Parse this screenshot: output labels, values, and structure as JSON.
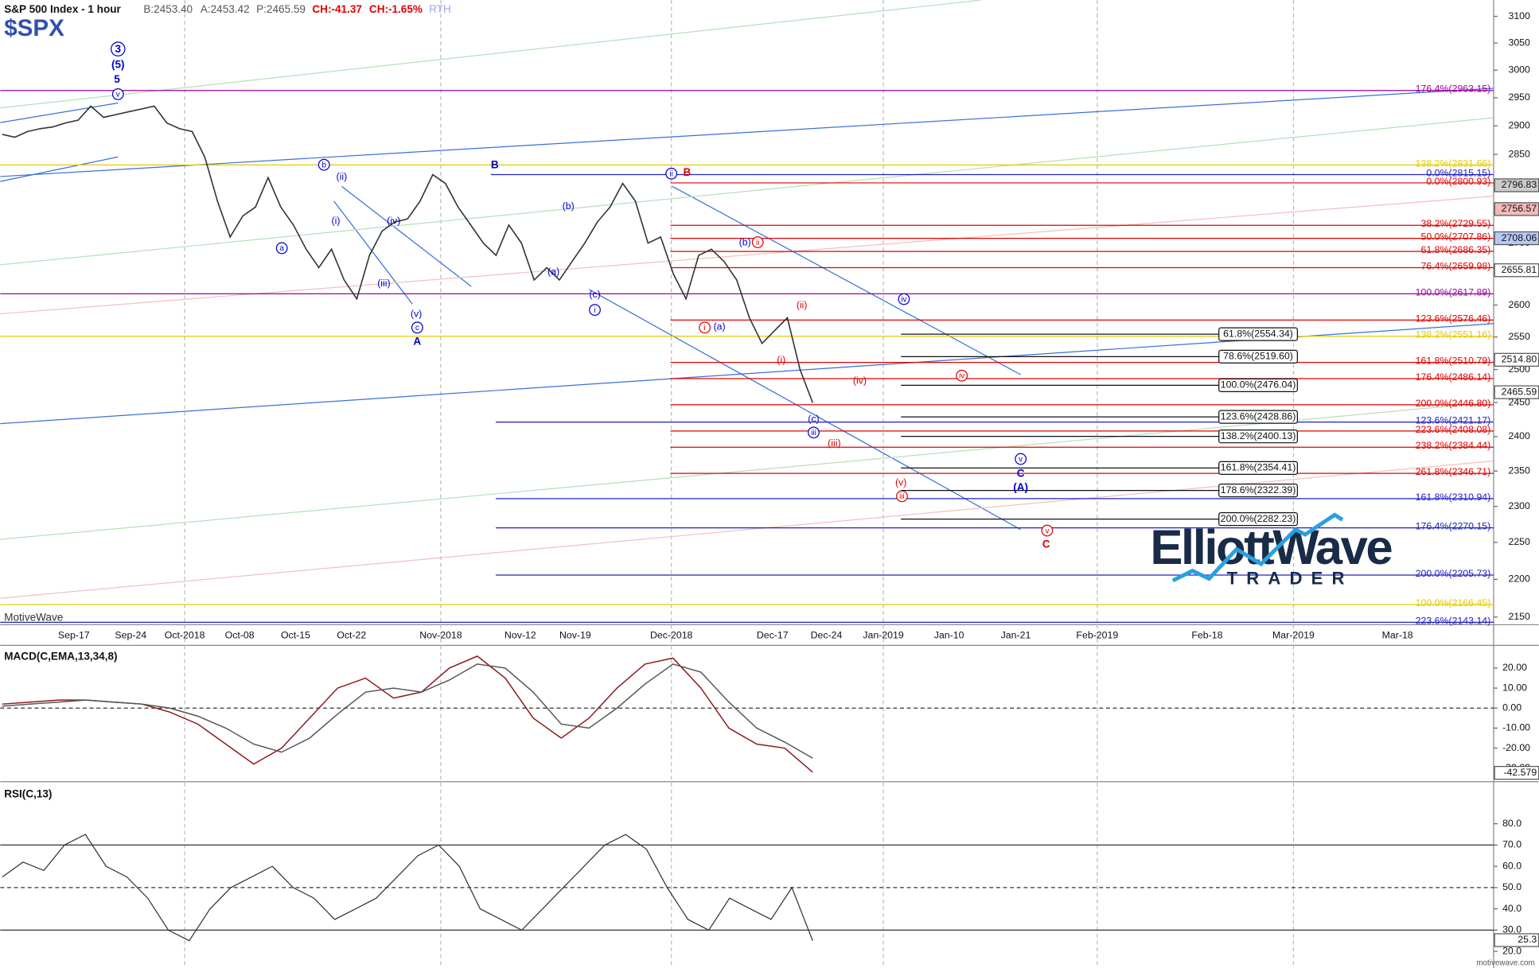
{
  "header": {
    "title": "S&P 500 Index - 1 hour",
    "bid": "B:2453.40",
    "ask": "A:2453.42",
    "price": "P:2465.59",
    "change": "CH:-41.37",
    "change_pct": "CH:-1.65%",
    "session": "RTH",
    "symbol": "$SPX",
    "watermark": "MotiveWave"
  },
  "logo": {
    "name": "ElliottWave",
    "tagline": "TRADER"
  },
  "footer": "motivewave.com",
  "chart_data": [
    {
      "type": "line",
      "log_scale": true,
      "color": "#333333",
      "ylim": [
        2140,
        3131
      ],
      "yticks": [
        2150,
        2200,
        2250,
        2300,
        2350,
        2400,
        2450,
        2500,
        2550,
        2600,
        2650,
        2700,
        2750,
        2800,
        2850,
        2900,
        2950,
        3000,
        3050,
        3100
      ],
      "x_axis_labels": [
        "Sep-17",
        "Sep-24",
        "Oct-2018",
        "Oct-08",
        "Oct-15",
        "Oct-22",
        "Nov-2018",
        "Nov-12",
        "Nov-19",
        "Dec-2018",
        "Dec-17",
        "Dec-24",
        "Jan-2019",
        "Jan-10",
        "Jan-21",
        "Feb-2019",
        "Feb-18",
        "Mar-2019",
        "Mar-18"
      ],
      "values": [
        2885,
        2880,
        2890,
        2895,
        2898,
        2905,
        2910,
        2935,
        2915,
        2920,
        2925,
        2930,
        2935,
        2905,
        2895,
        2890,
        2845,
        2770,
        2710,
        2745,
        2760,
        2810,
        2760,
        2730,
        2690,
        2660,
        2690,
        2640,
        2610,
        2680,
        2720,
        2735,
        2740,
        2770,
        2815,
        2800,
        2760,
        2730,
        2700,
        2680,
        2730,
        2700,
        2640,
        2660,
        2640,
        2670,
        2700,
        2735,
        2760,
        2800,
        2770,
        2700,
        2710,
        2650,
        2610,
        2680,
        2690,
        2670,
        2640,
        2580,
        2540,
        2560,
        2580,
        2500,
        2450
      ],
      "levels": [
        {
          "label": "176.4%(2963.15)",
          "value": 2963.15,
          "color": "#a000a0"
        },
        {
          "label": "138.2%(2831.66)",
          "value": 2831.66,
          "color": "#e8c800"
        },
        {
          "label": "0.0%(2815.15)",
          "value": 2815.15,
          "color": "#2020c0"
        },
        {
          "label": "0.0%(2800.93)",
          "value": 2800.93,
          "color": "#e00000"
        },
        {
          "label": "38.2%(2729.55)",
          "value": 2729.55,
          "color": "#e00000"
        },
        {
          "label": "50.0%(2707.86)",
          "value": 2707.86,
          "color": "#e00000"
        },
        {
          "label": "61.8%(2686.35)",
          "value": 2686.35,
          "color": "#e00000"
        },
        {
          "label": "76.4%(2659.98)",
          "value": 2659.98,
          "color": "#e00000"
        },
        {
          "label": "100.0%(2617.89)",
          "value": 2617.89,
          "color": "#a000a0"
        },
        {
          "label": "123.6%(2576.46)",
          "value": 2576.46,
          "color": "#e00000"
        },
        {
          "label": "138.2%(2551.16)",
          "value": 2551.16,
          "color": "#e8c800"
        },
        {
          "label": "161.8%(2510.79)",
          "value": 2510.79,
          "color": "#e00000"
        },
        {
          "label": "176.4%(2486.14)",
          "value": 2486.14,
          "color": "#e00000"
        },
        {
          "label": "200.0%(2446.80)",
          "value": 2446.8,
          "color": "#e00000"
        },
        {
          "label": "123.6%(2421.17)",
          "value": 2421.17,
          "color": "#2020c0"
        },
        {
          "label": "223.6%(2408.08)",
          "value": 2408.08,
          "color": "#e00000"
        },
        {
          "label": "238.2%(2384.44)",
          "value": 2384.44,
          "color": "#e00000"
        },
        {
          "label": "261.8%(2346.71)",
          "value": 2346.71,
          "color": "#e00000"
        },
        {
          "label": "161.8%(2310.94)",
          "value": 2310.94,
          "color": "#2020c0"
        },
        {
          "label": "176.4%(2270.15)",
          "value": 2270.15,
          "color": "#2020c0"
        },
        {
          "label": "200.0%(2205.73)",
          "value": 2205.73,
          "color": "#2020c0"
        },
        {
          "label": "100.0%(2166.45)",
          "value": 2166.45,
          "color": "#e8c800"
        },
        {
          "label": "223.6%(2143.14)",
          "value": 2143.14,
          "color": "#2020c0"
        }
      ],
      "projections": [
        {
          "label": "61.8%(2554.34)",
          "value": 2554.34
        },
        {
          "label": "78.6%(2519.60)",
          "value": 2519.6
        },
        {
          "label": "100.0%(2476.04)",
          "value": 2476.04
        },
        {
          "label": "123.6%(2428.86)",
          "value": 2428.86
        },
        {
          "label": "138.2%(2400.13)",
          "value": 2400.13
        },
        {
          "label": "161.8%(2354.41)",
          "value": 2354.41
        },
        {
          "label": "178.6%(2322.39)",
          "value": 2322.39
        },
        {
          "label": "200.0%(2282.23)",
          "value": 2282.23
        }
      ],
      "price_labels": [
        {
          "value": 2796.83,
          "label": "2796.83",
          "color": "#cccccc"
        },
        {
          "value": 2756.57,
          "label": "2756.57",
          "color": "#f4b8b8"
        },
        {
          "value": 2708.06,
          "label": "2708.06",
          "color": "#b8c8f4"
        },
        {
          "value": 2655.81,
          "label": "2655.81",
          "color": "#ffffff"
        },
        {
          "value": 2514.8,
          "label": "2514.80",
          "color": "#ffffff"
        },
        {
          "value": 2465.59,
          "label": "2465.59",
          "color": "#ffffff"
        }
      ],
      "wave_labels": [
        {
          "text": "3",
          "color": "#0000cc",
          "circled": true,
          "bold": true
        },
        {
          "text": "(5)",
          "color": "#0000cc",
          "circled": false,
          "bold": true
        },
        {
          "text": "5",
          "color": "#0000cc",
          "circled": false,
          "bold": true
        },
        {
          "text": "v",
          "color": "#0000cc",
          "circled": true,
          "bold": false
        },
        {
          "text": "b",
          "color": "#0000cc",
          "circled": true,
          "bold": false
        },
        {
          "text": "(ii)",
          "color": "#0000cc",
          "circled": false,
          "bold": false
        },
        {
          "text": "a",
          "color": "#0000cc",
          "circled": true,
          "bold": false
        },
        {
          "text": "(i)",
          "color": "#0000cc",
          "circled": false,
          "bold": false
        },
        {
          "text": "(iv)",
          "color": "#0000cc",
          "circled": false,
          "bold": false
        },
        {
          "text": "(iii)",
          "color": "#0000cc",
          "circled": false,
          "bold": false
        },
        {
          "text": "(v)",
          "color": "#0000cc",
          "circled": false,
          "bold": false
        },
        {
          "text": "c",
          "color": "#0000cc",
          "circled": true,
          "bold": false
        },
        {
          "text": "A",
          "color": "#0000cc",
          "circled": false,
          "bold": true
        },
        {
          "text": "B",
          "color": "#0000cc",
          "circled": false,
          "bold": true
        },
        {
          "text": "(b)",
          "color": "#0000cc",
          "circled": false,
          "bold": false
        },
        {
          "text": "(a)",
          "color": "#0000cc",
          "circled": false,
          "bold": false
        },
        {
          "text": "(c)",
          "color": "#0000cc",
          "circled": false,
          "bold": false
        },
        {
          "text": "i",
          "color": "#0000cc",
          "circled": true,
          "bold": false
        },
        {
          "text": "ii",
          "color": "#0000cc",
          "circled": true,
          "bold": false
        },
        {
          "text": "B",
          "color": "#e00000",
          "circled": false,
          "bold": true
        },
        {
          "text": "(b)",
          "color": "#0000cc",
          "circled": false,
          "bold": false
        },
        {
          "text": "ii",
          "color": "#e00000",
          "circled": true,
          "bold": false
        },
        {
          "text": "i",
          "color": "#e00000",
          "circled": true,
          "bold": false
        },
        {
          "text": "(a)",
          "color": "#0000cc",
          "circled": false,
          "bold": false
        },
        {
          "text": "(ii)",
          "color": "#e00000",
          "circled": false,
          "bold": false
        },
        {
          "text": "(i)",
          "color": "#e00000",
          "circled": false,
          "bold": false
        },
        {
          "text": "(iv)",
          "color": "#e00000",
          "circled": false,
          "bold": false
        },
        {
          "text": "iv",
          "color": "#e00000",
          "circled": true,
          "bold": false
        },
        {
          "text": "(c)",
          "color": "#0000cc",
          "circled": false,
          "bold": false
        },
        {
          "text": "iii",
          "color": "#0000cc",
          "circled": true,
          "bold": false
        },
        {
          "text": "(iii)",
          "color": "#e00000",
          "circled": false,
          "bold": false
        },
        {
          "text": "iv",
          "color": "#0000cc",
          "circled": true,
          "bold": false
        },
        {
          "text": "(v)",
          "color": "#e00000",
          "circled": false,
          "bold": false
        },
        {
          "text": "iii",
          "color": "#e00000",
          "circled": true,
          "bold": false
        },
        {
          "text": "v",
          "color": "#0000cc",
          "circled": true,
          "bold": false
        },
        {
          "text": "C",
          "color": "#0000cc",
          "circled": false,
          "bold": true
        },
        {
          "text": "(A)",
          "color": "#0000cc",
          "circled": false,
          "bold": true
        },
        {
          "text": "v",
          "color": "#e00000",
          "circled": true,
          "bold": false
        },
        {
          "text": "C",
          "color": "#e00000",
          "circled": false,
          "bold": true
        }
      ]
    },
    {
      "type": "line",
      "title": "MACD(C,EMA,13,34,8)",
      "ylim": [
        -35.8,
        30.4
      ],
      "yticks": [
        {
          "value": 20,
          "label": "20.00"
        },
        {
          "value": 10,
          "label": "10.00"
        },
        {
          "value": 0,
          "label": "0.00"
        },
        {
          "value": -10,
          "label": "-10.00"
        },
        {
          "value": -20,
          "label": "-20.00"
        },
        {
          "value": -30,
          "label": "-30.00"
        }
      ],
      "zero_line": 0,
      "series": [
        {
          "color": "#8b1a1a",
          "values": [
            2,
            3,
            4,
            4,
            3,
            2,
            -2,
            -8,
            -18,
            -28,
            -20,
            -5,
            10,
            15,
            5,
            8,
            20,
            26,
            15,
            -5,
            -15,
            -5,
            10,
            22,
            25,
            10,
            -10,
            -18,
            -20,
            -32
          ]
        },
        {
          "color": "#555555",
          "values": [
            1,
            2,
            3,
            4,
            3,
            2,
            0,
            -4,
            -10,
            -18,
            -22,
            -15,
            -3,
            8,
            10,
            8,
            14,
            22,
            20,
            8,
            -8,
            -10,
            0,
            12,
            22,
            18,
            3,
            -10,
            -17,
            -25
          ]
        }
      ],
      "last_value": -42.579
    },
    {
      "type": "line",
      "title": "RSI(C,13)",
      "ylim": [
        12.2,
        98.4
      ],
      "yticks": [
        {
          "value": 80,
          "label": "80.0"
        },
        {
          "value": 70,
          "label": "70.0"
        },
        {
          "value": 60,
          "label": "60.0"
        },
        {
          "value": 50,
          "label": "50.0"
        },
        {
          "value": 40,
          "label": "40.0"
        },
        {
          "value": 30,
          "label": "30.0"
        },
        {
          "value": 20,
          "label": "20.0"
        }
      ],
      "reference_lines": [
        70,
        50,
        30
      ],
      "color": "#333333",
      "values": [
        55,
        62,
        58,
        70,
        75,
        60,
        55,
        45,
        30,
        25,
        40,
        50,
        55,
        60,
        50,
        45,
        35,
        40,
        45,
        55,
        65,
        70,
        60,
        40,
        35,
        30,
        40,
        50,
        60,
        70,
        75,
        68,
        50,
        35,
        30,
        45,
        40,
        35,
        50,
        25
      ],
      "last_value": 25.3
    }
  ]
}
